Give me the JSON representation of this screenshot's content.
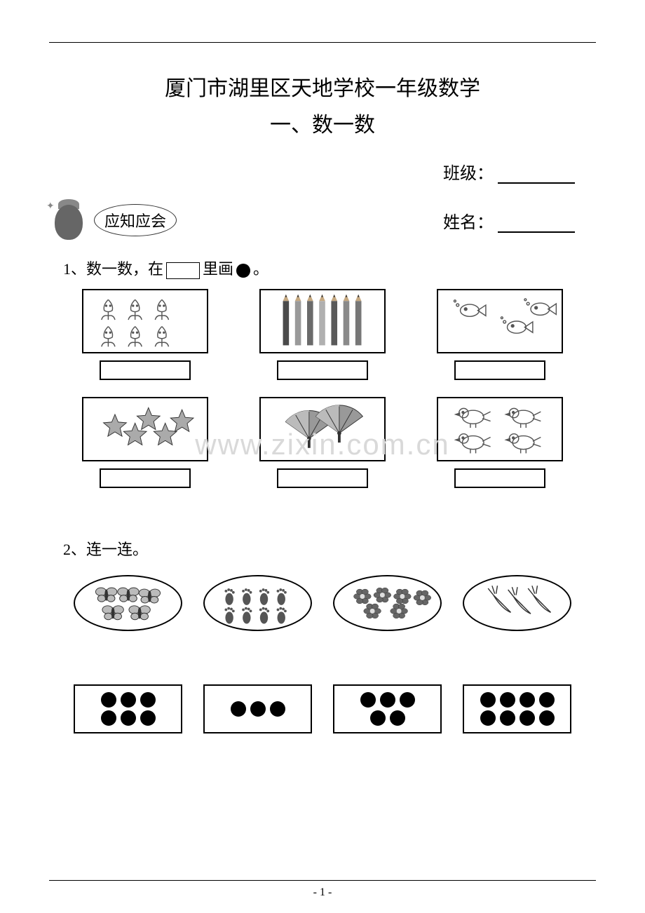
{
  "title": {
    "line1": "厦门市湖里区天地学校一年级数学",
    "line2": "一、数一数"
  },
  "fields": {
    "class_label": "班级：",
    "name_label": "姓名："
  },
  "section_badge": "应知应会",
  "q1": {
    "prefix": "1、数一数，在",
    "mid": "里画",
    "suffix": "。",
    "items": [
      {
        "name": "tulips",
        "count": 6,
        "icon_color": "#555555"
      },
      {
        "name": "pencils",
        "count": 7,
        "icon_color": "#6a6a6a"
      },
      {
        "name": "goldfish",
        "count": 3,
        "icon_color": "#555555"
      },
      {
        "name": "stars",
        "count": 5,
        "icon_color": "#888888"
      },
      {
        "name": "fans",
        "count": 2,
        "icon_color": "#777777"
      },
      {
        "name": "birds",
        "count": 4,
        "icon_color": "#555555"
      }
    ]
  },
  "q2": {
    "label": "2、连一连。",
    "ovals": [
      {
        "name": "butterflies",
        "count": 5
      },
      {
        "name": "footprints",
        "count": 8
      },
      {
        "name": "flowers",
        "count": 6
      },
      {
        "name": "carrots",
        "count": 3
      }
    ],
    "rects": [
      {
        "dots": 6,
        "layout": "3-3"
      },
      {
        "dots": 3,
        "layout": "3"
      },
      {
        "dots": 5,
        "layout": "3-2"
      },
      {
        "dots": 8,
        "layout": "4-4"
      }
    ]
  },
  "watermark": "www.zixin.com.cn",
  "footer": {
    "page": "- 1 -"
  },
  "colors": {
    "text": "#000000",
    "border": "#000000",
    "watermark": "#d9d9d9",
    "bg": "#ffffff"
  }
}
